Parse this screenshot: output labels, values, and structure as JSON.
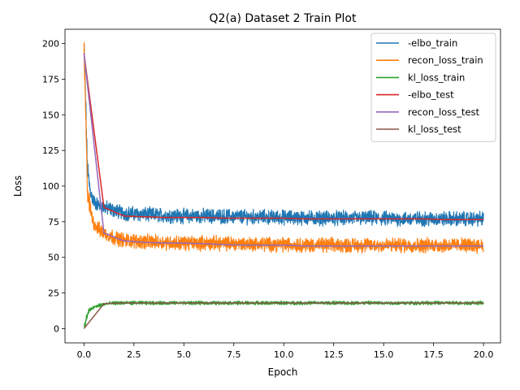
{
  "chart_data": {
    "type": "line",
    "title": "Q2(a) Dataset 2 Train Plot",
    "xlabel": "Epoch",
    "ylabel": "Loss",
    "xlim": [
      -0.95,
      20.85
    ],
    "ylim": [
      -10,
      210
    ],
    "xticks": [
      "0.0",
      "2.5",
      "5.0",
      "7.5",
      "10.0",
      "12.5",
      "15.0",
      "17.5",
      "20.0"
    ],
    "xtick_values": [
      0,
      2.5,
      5,
      7.5,
      10,
      12.5,
      15,
      17.5,
      20
    ],
    "yticks": [
      "0",
      "25",
      "50",
      "75",
      "100",
      "125",
      "150",
      "175",
      "200"
    ],
    "ytick_values": [
      0,
      25,
      50,
      75,
      100,
      125,
      150,
      175,
      200
    ],
    "legend_position": "top-right",
    "series": [
      {
        "name": "-elbo_train",
        "color": "#1f77b4",
        "noise": 4,
        "x": [
          0,
          0.05,
          0.1,
          0.15,
          0.2,
          0.3,
          0.4,
          0.5,
          0.7,
          1.0,
          1.5,
          2.0,
          3,
          4,
          5,
          6,
          8,
          10,
          12,
          14,
          16,
          18,
          20
        ],
        "y": [
          198,
          175,
          150,
          120,
          108,
          98,
          92,
          89,
          87,
          85,
          83,
          81,
          80,
          79.5,
          79,
          79,
          78.5,
          78,
          77.5,
          77.5,
          77,
          77,
          77
        ]
      },
      {
        "name": "recon_loss_train",
        "color": "#ff7f0e",
        "noise": 4,
        "x": [
          0,
          0.05,
          0.1,
          0.15,
          0.2,
          0.3,
          0.4,
          0.5,
          0.7,
          1.0,
          1.5,
          2.0,
          3,
          4,
          5,
          6,
          8,
          10,
          12,
          14,
          16,
          18,
          20
        ],
        "y": [
          198,
          170,
          140,
          108,
          95,
          85,
          78,
          74,
          70,
          67,
          64,
          62,
          61,
          60.5,
          60,
          60,
          59.5,
          59,
          58.5,
          58.5,
          58.5,
          58.5,
          58.5
        ]
      },
      {
        "name": "kl_loss_train",
        "color": "#2ca02c",
        "noise": 1,
        "x": [
          0,
          0.05,
          0.1,
          0.2,
          0.3,
          0.5,
          0.8,
          1.2,
          1.6,
          2.5,
          5,
          10,
          15,
          20
        ],
        "y": [
          0,
          3,
          6,
          11,
          13,
          15,
          16.5,
          17.5,
          18,
          18,
          18,
          18,
          18,
          18
        ]
      },
      {
        "name": "-elbo_test",
        "color": "#d62728",
        "noise": 0,
        "x": [
          0,
          1,
          2,
          3,
          4,
          5,
          6,
          7,
          8,
          9,
          10,
          11,
          12,
          13,
          14,
          15,
          16,
          17,
          18,
          19,
          20
        ],
        "y": [
          193,
          85,
          79,
          78.5,
          78,
          78,
          78,
          77.5,
          77.5,
          77.5,
          77.5,
          77,
          77,
          77,
          77,
          77,
          77,
          77,
          76.5,
          76.5,
          76.5
        ]
      },
      {
        "name": "recon_loss_test",
        "color": "#9467bd",
        "noise": 0,
        "x": [
          0,
          1,
          2,
          3,
          4,
          5,
          6,
          7,
          8,
          9,
          10,
          11,
          12,
          13,
          14,
          15,
          16,
          17,
          18,
          19,
          20
        ],
        "y": [
          193,
          67,
          61.5,
          60.5,
          60,
          60,
          59.5,
          59,
          58.5,
          58.5,
          58.5,
          58,
          58,
          58,
          58,
          58,
          58,
          58,
          58,
          58,
          58
        ]
      },
      {
        "name": "kl_loss_test",
        "color": "#8c564b",
        "noise": 0,
        "x": [
          0,
          1,
          2,
          3,
          4,
          5,
          6,
          7,
          8,
          9,
          10,
          11,
          12,
          13,
          14,
          15,
          16,
          17,
          18,
          19,
          20
        ],
        "y": [
          0,
          17.5,
          18,
          18,
          18,
          18,
          18,
          18,
          18,
          18,
          18,
          18,
          18,
          18,
          18,
          18,
          18,
          18,
          18,
          18,
          18
        ]
      }
    ]
  }
}
